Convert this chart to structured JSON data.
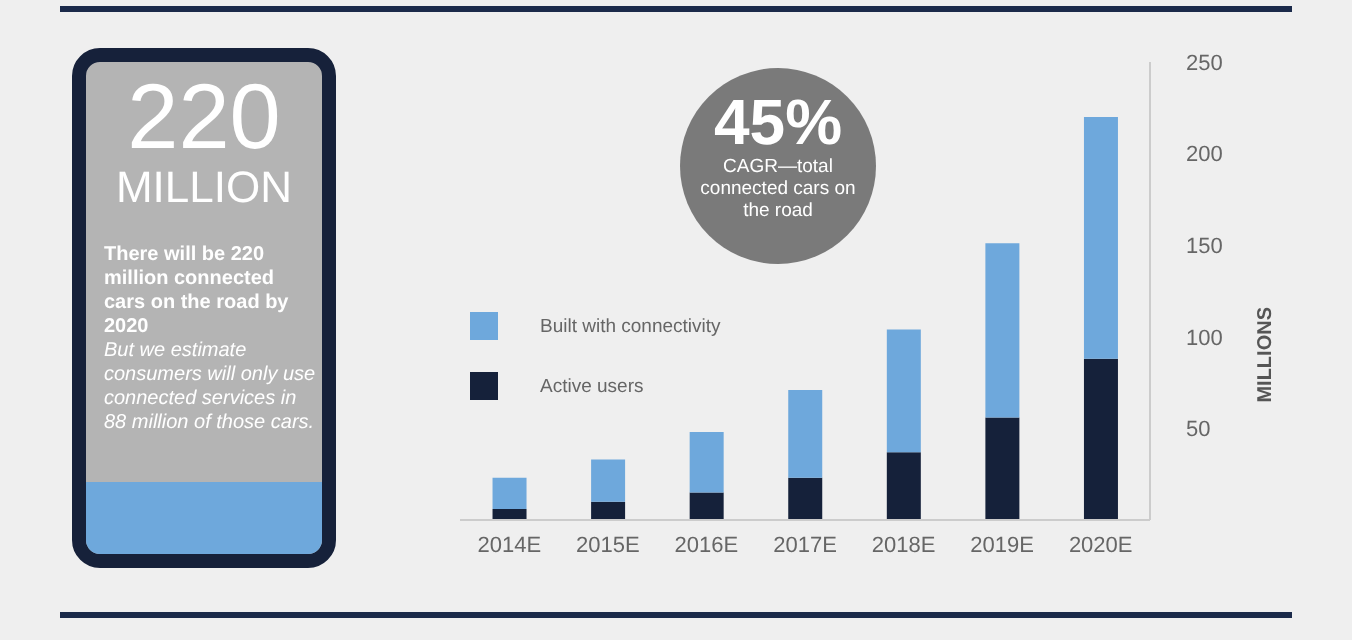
{
  "chart_data": {
    "type": "bar",
    "stacked": true,
    "categories": [
      "2014E",
      "2015E",
      "2016E",
      "2017E",
      "2018E",
      "2019E",
      "2020E"
    ],
    "series": [
      {
        "name": "Active users",
        "color": "#15213a",
        "values": [
          6,
          10,
          15,
          23,
          37,
          56,
          88
        ]
      },
      {
        "name": "Built with connectivity",
        "color": "#6ea8dc",
        "values": [
          17,
          23,
          33,
          48,
          67,
          95,
          132
        ]
      }
    ],
    "ylabel": "MILLIONS",
    "ylim": [
      0,
      250
    ],
    "yticks": [
      50,
      100,
      150,
      200,
      250
    ],
    "grid": false,
    "legend": "left",
    "annotations": [
      "220",
      "MILLION",
      "There will be 220 million connected cars on the road by 2020",
      "But we estimate consumers will only use connected services in 88 million of those cars.",
      "45%",
      "CAGR—total connected cars on the road"
    ]
  }
}
